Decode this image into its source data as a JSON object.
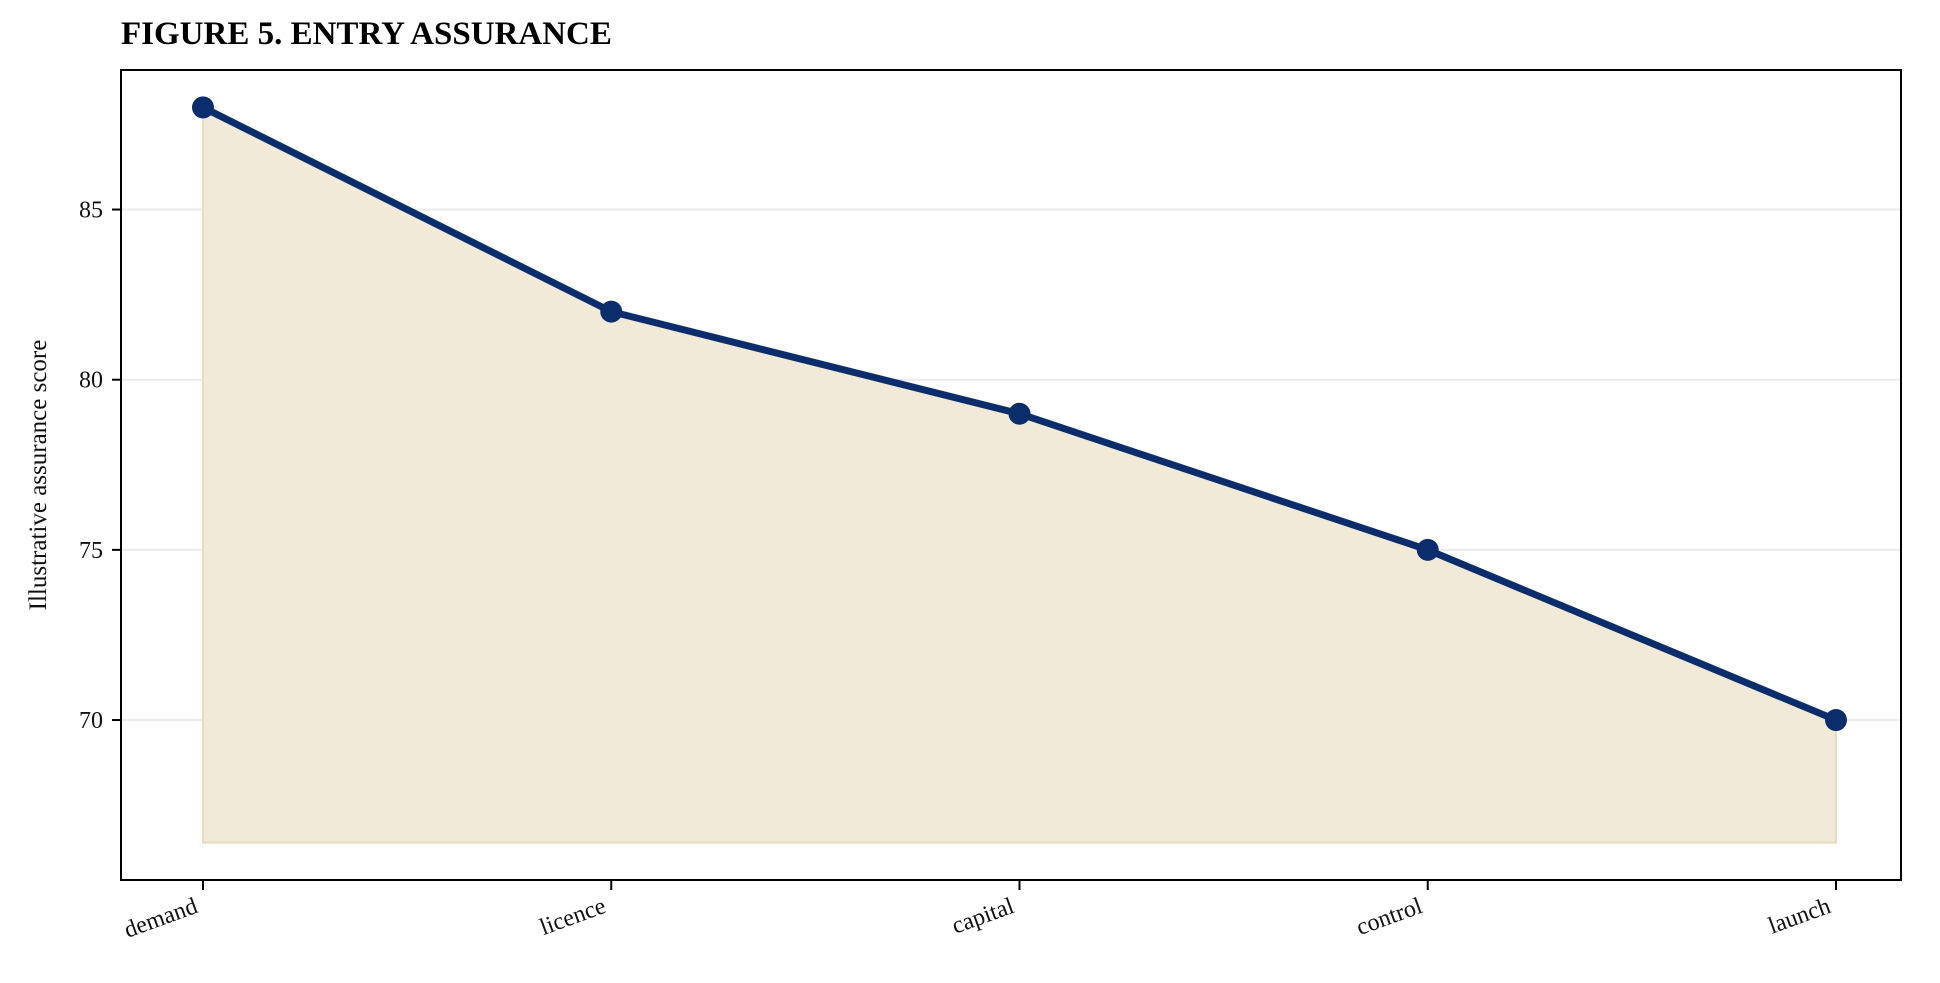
{
  "chart_data": {
    "type": "area",
    "title": "FIGURE 5. ENTRY ASSURANCE",
    "xlabel": "",
    "ylabel": "Illustrative assurance score",
    "categories": [
      "demand",
      "licence",
      "capital",
      "control",
      "launch"
    ],
    "series": [
      {
        "values": [
          88,
          82,
          79,
          75,
          70
        ]
      }
    ],
    "area_baseline": 66.4,
    "ylim": [
      65.3,
      89.1
    ],
    "yticks": [
      70,
      75,
      80,
      85
    ],
    "grid": "horizontal",
    "legend": "none",
    "colors": {
      "line": "#0b2d6b",
      "fill": "#f2ead9",
      "fill_edge": "#e9dcbc",
      "grid": "#ebebeb",
      "axis": "#000000"
    }
  }
}
